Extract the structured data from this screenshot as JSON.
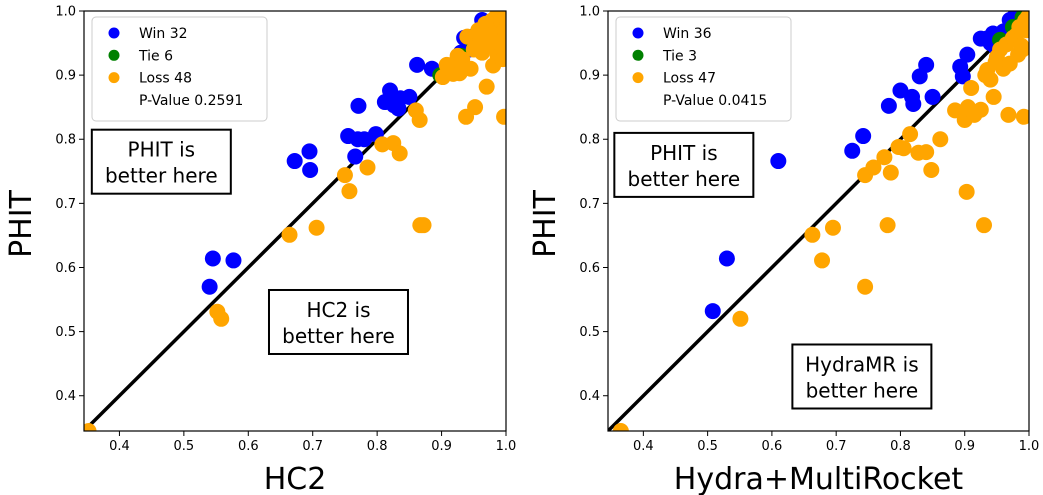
{
  "colors": {
    "win": "#0000ff",
    "tie": "#008000",
    "loss": "#ffa500",
    "diagonal": "#000000"
  },
  "chart_data": [
    {
      "type": "scatter",
      "xlabel": "HC2",
      "ylabel": "PHIT",
      "xlim": [
        0.345,
        1.0
      ],
      "ylim": [
        0.345,
        1.0
      ],
      "ticks": [
        "0.4",
        "0.5",
        "0.6",
        "0.7",
        "0.8",
        "0.9",
        "1.0"
      ],
      "tick_values": [
        0.4,
        0.5,
        0.6,
        0.7,
        0.8,
        0.9,
        1.0
      ],
      "legend": {
        "placement": "top-left",
        "entries": [
          "Win 32",
          "Tie 6",
          "Loss 48"
        ],
        "pvalue": "P-Value 0.2591"
      },
      "annotations": [
        {
          "lines": [
            "PHIT is",
            "better here"
          ],
          "at": [
            0.465,
            0.765
          ]
        },
        {
          "lines": [
            "HC2 is",
            "better here"
          ],
          "at": [
            0.74,
            0.515
          ]
        }
      ],
      "diagonal": true,
      "series": [
        {
          "name": "Win",
          "color_key": "win",
          "points": [
            [
              0.54,
              0.57
            ],
            [
              0.545,
              0.614
            ],
            [
              0.577,
              0.611
            ],
            [
              0.672,
              0.766
            ],
            [
              0.695,
              0.781
            ],
            [
              0.696,
              0.752
            ],
            [
              0.755,
              0.805
            ],
            [
              0.766,
              0.773
            ],
            [
              0.771,
              0.852
            ],
            [
              0.77,
              0.8
            ],
            [
              0.78,
              0.8
            ],
            [
              0.798,
              0.808
            ],
            [
              0.812,
              0.858
            ],
            [
              0.82,
              0.876
            ],
            [
              0.826,
              0.853
            ],
            [
              0.833,
              0.848
            ],
            [
              0.836,
              0.864
            ],
            [
              0.85,
              0.866
            ],
            [
              0.862,
              0.916
            ],
            [
              0.885,
              0.91
            ],
            [
              0.93,
              0.935
            ],
            [
              0.935,
              0.958
            ],
            [
              0.94,
              0.952
            ],
            [
              0.943,
              0.94
            ],
            [
              0.948,
              0.96
            ],
            [
              0.955,
              0.944
            ],
            [
              0.963,
              0.986
            ],
            [
              0.97,
              0.976
            ],
            [
              0.975,
              0.97
            ],
            [
              0.983,
              0.98
            ],
            [
              0.989,
              0.992
            ],
            [
              0.995,
              0.998
            ]
          ]
        },
        {
          "name": "Tie",
          "color_key": "tie",
          "points": [
            [
              0.898,
              0.9
            ],
            [
              0.93,
              0.93
            ],
            [
              0.95,
              0.95
            ],
            [
              0.968,
              0.968
            ],
            [
              0.985,
              0.985
            ],
            [
              0.994,
              0.994
            ]
          ]
        },
        {
          "name": "Loss",
          "color_key": "loss",
          "points": [
            [
              0.352,
              0.345
            ],
            [
              0.552,
              0.531
            ],
            [
              0.558,
              0.52
            ],
            [
              0.664,
              0.651
            ],
            [
              0.706,
              0.662
            ],
            [
              0.75,
              0.744
            ],
            [
              0.757,
              0.719
            ],
            [
              0.785,
              0.756
            ],
            [
              0.808,
              0.792
            ],
            [
              0.825,
              0.794
            ],
            [
              0.835,
              0.778
            ],
            [
              0.86,
              0.845
            ],
            [
              0.866,
              0.83
            ],
            [
              0.867,
              0.666
            ],
            [
              0.872,
              0.666
            ],
            [
              0.902,
              0.897
            ],
            [
              0.908,
              0.916
            ],
            [
              0.918,
              0.902
            ],
            [
              0.922,
              0.92
            ],
            [
              0.925,
              0.93
            ],
            [
              0.928,
              0.903
            ],
            [
              0.932,
              0.925
            ],
            [
              0.938,
              0.835
            ],
            [
              0.94,
              0.96
            ],
            [
              0.945,
              0.91
            ],
            [
              0.95,
              0.94
            ],
            [
              0.952,
              0.85
            ],
            [
              0.957,
              0.97
            ],
            [
              0.96,
              0.955
            ],
            [
              0.963,
              0.935
            ],
            [
              0.968,
              0.98
            ],
            [
              0.97,
              0.882
            ],
            [
              0.972,
              0.96
            ],
            [
              0.975,
              0.945
            ],
            [
              0.978,
              0.985
            ],
            [
              0.98,
              0.915
            ],
            [
              0.982,
              0.965
            ],
            [
              0.984,
              0.99
            ],
            [
              0.985,
              0.95
            ],
            [
              0.987,
              0.93
            ],
            [
              0.988,
              0.972
            ],
            [
              0.99,
              0.96
            ],
            [
              0.992,
              0.985
            ],
            [
              0.993,
              0.945
            ],
            [
              0.995,
              0.925
            ],
            [
              0.997,
              0.835
            ],
            [
              0.998,
              0.97
            ],
            [
              0.999,
              0.99
            ]
          ]
        }
      ]
    },
    {
      "type": "scatter",
      "xlabel": "Hydra+MultiRocket",
      "ylabel": "PHIT",
      "xlim": [
        0.345,
        1.0
      ],
      "ylim": [
        0.345,
        1.0
      ],
      "ticks": [
        "0.4",
        "0.5",
        "0.6",
        "0.7",
        "0.8",
        "0.9",
        "1.0"
      ],
      "tick_values": [
        0.4,
        0.5,
        0.6,
        0.7,
        0.8,
        0.9,
        1.0
      ],
      "legend": {
        "placement": "top-left",
        "entries": [
          "Win 36",
          "Tie 3",
          "Loss 47"
        ],
        "pvalue": "P-Value 0.0415"
      },
      "annotations": [
        {
          "lines": [
            "PHIT is",
            "better here"
          ],
          "at": [
            0.463,
            0.76
          ]
        },
        {
          "lines": [
            "HydraMR is",
            "better here"
          ],
          "at": [
            0.74,
            0.43
          ]
        }
      ],
      "diagonal": true,
      "series": [
        {
          "name": "Win",
          "color_key": "win",
          "points": [
            [
              0.508,
              0.532
            ],
            [
              0.53,
              0.614
            ],
            [
              0.61,
              0.766
            ],
            [
              0.725,
              0.782
            ],
            [
              0.742,
              0.805
            ],
            [
              0.782,
              0.852
            ],
            [
              0.8,
              0.876
            ],
            [
              0.818,
              0.866
            ],
            [
              0.82,
              0.855
            ],
            [
              0.83,
              0.898
            ],
            [
              0.84,
              0.916
            ],
            [
              0.85,
              0.866
            ],
            [
              0.893,
              0.913
            ],
            [
              0.897,
              0.898
            ],
            [
              0.904,
              0.932
            ],
            [
              0.925,
              0.957
            ],
            [
              0.934,
              0.957
            ],
            [
              0.944,
              0.965
            ],
            [
              0.948,
              0.944
            ],
            [
              0.955,
              0.955
            ],
            [
              0.958,
              0.96
            ],
            [
              0.965,
              0.97
            ],
            [
              0.97,
              0.986
            ],
            [
              0.975,
              0.975
            ],
            [
              0.978,
              0.992
            ],
            [
              0.982,
              0.982
            ],
            [
              0.985,
              0.988
            ],
            [
              0.988,
              0.994
            ],
            [
              0.99,
              0.998
            ],
            [
              0.993,
              0.996
            ],
            [
              0.995,
              0.99
            ],
            [
              0.997,
              0.999
            ],
            [
              0.94,
              0.95
            ],
            [
              0.96,
              0.968
            ],
            [
              0.972,
              0.98
            ],
            [
              0.98,
              0.99
            ]
          ]
        },
        {
          "name": "Tie",
          "color_key": "tie",
          "points": [
            [
              0.955,
              0.955
            ],
            [
              0.975,
              0.975
            ],
            [
              0.99,
              0.99
            ]
          ]
        },
        {
          "name": "Loss",
          "color_key": "loss",
          "points": [
            [
              0.365,
              0.345
            ],
            [
              0.551,
              0.52
            ],
            [
              0.663,
              0.651
            ],
            [
              0.678,
              0.611
            ],
            [
              0.695,
              0.662
            ],
            [
              0.745,
              0.57
            ],
            [
              0.745,
              0.744
            ],
            [
              0.758,
              0.756
            ],
            [
              0.775,
              0.772
            ],
            [
              0.78,
              0.666
            ],
            [
              0.785,
              0.748
            ],
            [
              0.797,
              0.788
            ],
            [
              0.805,
              0.786
            ],
            [
              0.815,
              0.808
            ],
            [
              0.828,
              0.779
            ],
            [
              0.84,
              0.78
            ],
            [
              0.848,
              0.752
            ],
            [
              0.862,
              0.8
            ],
            [
              0.885,
              0.845
            ],
            [
              0.9,
              0.83
            ],
            [
              0.903,
              0.718
            ],
            [
              0.905,
              0.85
            ],
            [
              0.91,
              0.88
            ],
            [
              0.915,
              0.838
            ],
            [
              0.925,
              0.846
            ],
            [
              0.93,
              0.666
            ],
            [
              0.932,
              0.9
            ],
            [
              0.935,
              0.908
            ],
            [
              0.94,
              0.893
            ],
            [
              0.945,
              0.866
            ],
            [
              0.948,
              0.92
            ],
            [
              0.95,
              0.928
            ],
            [
              0.955,
              0.94
            ],
            [
              0.96,
              0.91
            ],
            [
              0.965,
              0.948
            ],
            [
              0.968,
              0.838
            ],
            [
              0.97,
              0.918
            ],
            [
              0.975,
              0.958
            ],
            [
              0.98,
              0.962
            ],
            [
              0.983,
              0.932
            ],
            [
              0.985,
              0.975
            ],
            [
              0.988,
              0.946
            ],
            [
              0.99,
              0.94
            ],
            [
              0.992,
              0.835
            ],
            [
              0.994,
              0.985
            ],
            [
              0.996,
              0.97
            ],
            [
              0.998,
              0.99
            ]
          ]
        }
      ]
    }
  ]
}
